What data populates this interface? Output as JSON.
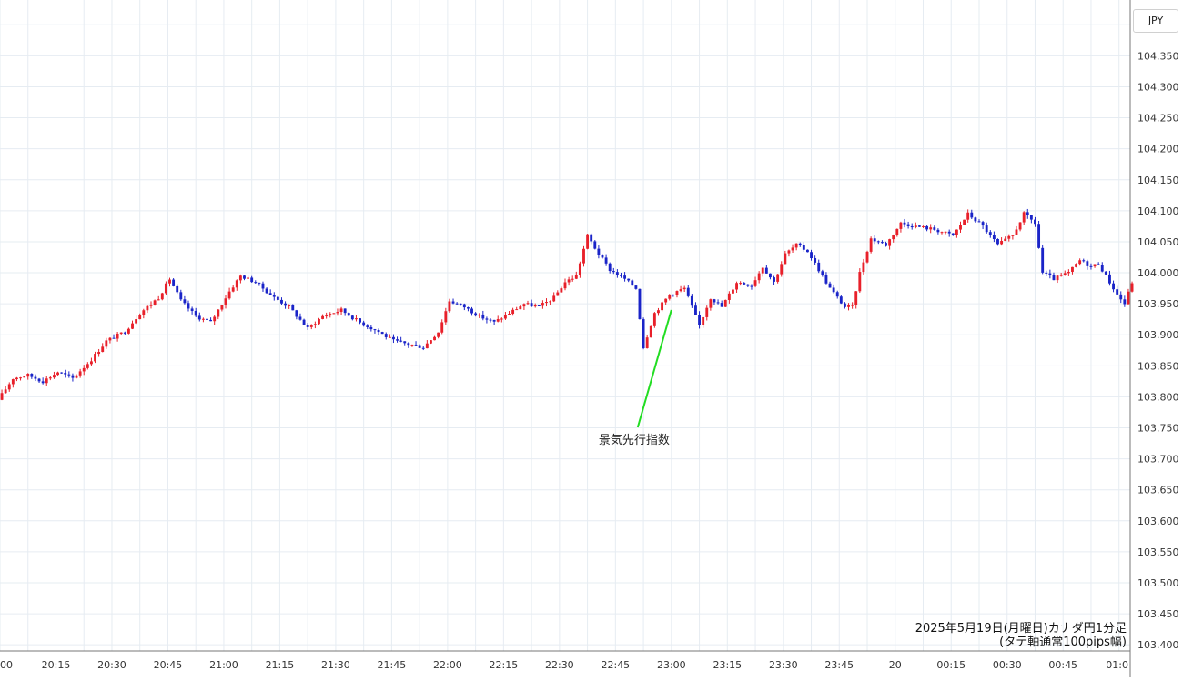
{
  "currency_badge": "JPY",
  "title_line1": "2025年5月19日(月曜日)カナダ円1分足",
  "title_line2": "(タテ軸通常100pips幅)",
  "annotation": {
    "label": "景気先行指数",
    "time": "23:00",
    "price": 103.94,
    "color": "#22dd22"
  },
  "colors": {
    "up": "#e8202a",
    "down": "#1a24c8",
    "grid": "#e6ecf2",
    "axis_text": "#333333"
  },
  "chart_data": {
    "type": "candlestick",
    "ylim": [
      103.39,
      104.44
    ],
    "y_ticks": [
      "104.400",
      "104.350",
      "104.300",
      "104.250",
      "104.200",
      "104.150",
      "104.100",
      "104.050",
      "104.000",
      "103.950",
      "103.900",
      "103.850",
      "103.800",
      "103.750",
      "103.700",
      "103.650",
      "103.600",
      "103.550",
      "103.500",
      "103.450",
      "103.400"
    ],
    "x_ticks": [
      "00",
      "20:15",
      "20:30",
      "20:45",
      "21:00",
      "21:15",
      "21:30",
      "21:45",
      "22:00",
      "22:15",
      "22:30",
      "22:45",
      "23:00",
      "23:15",
      "23:30",
      "23:45",
      "20",
      "00:15",
      "00:30",
      "00:45",
      "01:0"
    ],
    "x_range_minutes": [
      1200,
      1503
    ],
    "price_path": [
      [
        1200,
        103.795
      ],
      [
        1204,
        103.83
      ],
      [
        1208,
        103.835
      ],
      [
        1212,
        103.825
      ],
      [
        1216,
        103.84
      ],
      [
        1220,
        103.83
      ],
      [
        1225,
        103.86
      ],
      [
        1229,
        103.89
      ],
      [
        1234,
        103.905
      ],
      [
        1238,
        103.935
      ],
      [
        1243,
        103.96
      ],
      [
        1246,
        103.99
      ],
      [
        1249,
        103.955
      ],
      [
        1253,
        103.93
      ],
      [
        1257,
        103.92
      ],
      [
        1262,
        103.97
      ],
      [
        1265,
        103.995
      ],
      [
        1269,
        103.985
      ],
      [
        1274,
        103.96
      ],
      [
        1278,
        103.945
      ],
      [
        1283,
        103.91
      ],
      [
        1287,
        103.93
      ],
      [
        1292,
        103.94
      ],
      [
        1297,
        103.92
      ],
      [
        1302,
        103.905
      ],
      [
        1306,
        103.89
      ],
      [
        1310,
        103.885
      ],
      [
        1314,
        103.88
      ],
      [
        1318,
        103.905
      ],
      [
        1321,
        103.955
      ],
      [
        1325,
        103.945
      ],
      [
        1329,
        103.93
      ],
      [
        1333,
        103.92
      ],
      [
        1337,
        103.935
      ],
      [
        1341,
        103.95
      ],
      [
        1345,
        103.945
      ],
      [
        1349,
        103.96
      ],
      [
        1352,
        103.985
      ],
      [
        1355,
        103.995
      ],
      [
        1358,
        104.06
      ],
      [
        1361,
        104.03
      ],
      [
        1364,
        104.005
      ],
      [
        1368,
        103.99
      ],
      [
        1371,
        103.975
      ],
      [
        1373,
        103.88
      ],
      [
        1376,
        103.935
      ],
      [
        1380,
        103.965
      ],
      [
        1384,
        103.975
      ],
      [
        1388,
        103.915
      ],
      [
        1391,
        103.96
      ],
      [
        1394,
        103.945
      ],
      [
        1398,
        103.985
      ],
      [
        1402,
        103.98
      ],
      [
        1405,
        104.01
      ],
      [
        1408,
        103.985
      ],
      [
        1411,
        104.03
      ],
      [
        1414,
        104.045
      ],
      [
        1417,
        104.035
      ],
      [
        1420,
        104.005
      ],
      [
        1423,
        103.975
      ],
      [
        1427,
        103.945
      ],
      [
        1429,
        103.945
      ],
      [
        1431,
        104.0
      ],
      [
        1434,
        104.055
      ],
      [
        1438,
        104.045
      ],
      [
        1442,
        104.08
      ],
      [
        1446,
        104.075
      ],
      [
        1451,
        104.07
      ],
      [
        1456,
        104.06
      ],
      [
        1460,
        104.095
      ],
      [
        1464,
        104.075
      ],
      [
        1468,
        104.045
      ],
      [
        1472,
        104.06
      ],
      [
        1475,
        104.095
      ],
      [
        1478,
        104.08
      ],
      [
        1480,
        104.0
      ],
      [
        1483,
        103.99
      ],
      [
        1487,
        104.0
      ],
      [
        1490,
        104.02
      ],
      [
        1493,
        104.01
      ],
      [
        1495,
        104.015
      ],
      [
        1498,
        103.985
      ],
      [
        1500,
        103.965
      ],
      [
        1502,
        103.95
      ],
      [
        1504,
        103.985
      ]
    ],
    "candle_count": 304,
    "rng_seed": 17
  }
}
